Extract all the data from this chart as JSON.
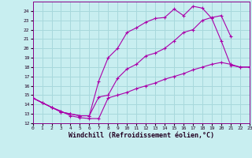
{
  "background_color": "#c8eef0",
  "grid_color": "#a8d8dc",
  "line_color": "#aa00aa",
  "xlabel": "Windchill (Refroidissement éolien,°C)",
  "xlim": [
    0,
    23
  ],
  "ylim": [
    12,
    25
  ],
  "yticks": [
    12,
    13,
    14,
    15,
    16,
    17,
    18,
    19,
    20,
    21,
    22,
    23,
    24
  ],
  "xticks": [
    0,
    1,
    2,
    3,
    4,
    5,
    6,
    7,
    8,
    9,
    10,
    11,
    12,
    13,
    14,
    15,
    16,
    17,
    18,
    19,
    20,
    21,
    22,
    23
  ],
  "line1_x": [
    0,
    1,
    2,
    3,
    4,
    5,
    6,
    7,
    8,
    9,
    10,
    11,
    12,
    13,
    14,
    15,
    16,
    17,
    18,
    19,
    20,
    21,
    22,
    23
  ],
  "line1_y": [
    14.7,
    14.2,
    13.7,
    13.3,
    12.8,
    12.6,
    12.5,
    12.5,
    14.7,
    15.0,
    15.3,
    15.7,
    16.0,
    16.3,
    16.7,
    17.0,
    17.3,
    17.7,
    18.0,
    18.3,
    18.5,
    18.3,
    18.0,
    18.0
  ],
  "line2_x": [
    0,
    2,
    3,
    4,
    5,
    6,
    7,
    8,
    9,
    10,
    11,
    12,
    13,
    14,
    15,
    16,
    17,
    18,
    19,
    20,
    21,
    22,
    23
  ],
  "line2_y": [
    14.7,
    13.7,
    13.2,
    13.0,
    12.8,
    12.8,
    16.5,
    19.0,
    20.0,
    21.7,
    22.2,
    22.8,
    23.2,
    23.3,
    24.2,
    23.5,
    24.5,
    24.3,
    23.2,
    20.8,
    18.2,
    18.0,
    18.0
  ],
  "line3_x": [
    0,
    1,
    2,
    3,
    4,
    5,
    6,
    7,
    8,
    9,
    10,
    11,
    12,
    13,
    14,
    15,
    16,
    17,
    18,
    19,
    20,
    21
  ],
  "line3_y": [
    14.7,
    14.2,
    13.7,
    13.2,
    13.0,
    12.8,
    12.8,
    14.8,
    15.0,
    16.8,
    17.8,
    18.3,
    19.2,
    19.5,
    20.0,
    20.8,
    21.7,
    22.0,
    23.0,
    23.3,
    23.5,
    21.3
  ]
}
